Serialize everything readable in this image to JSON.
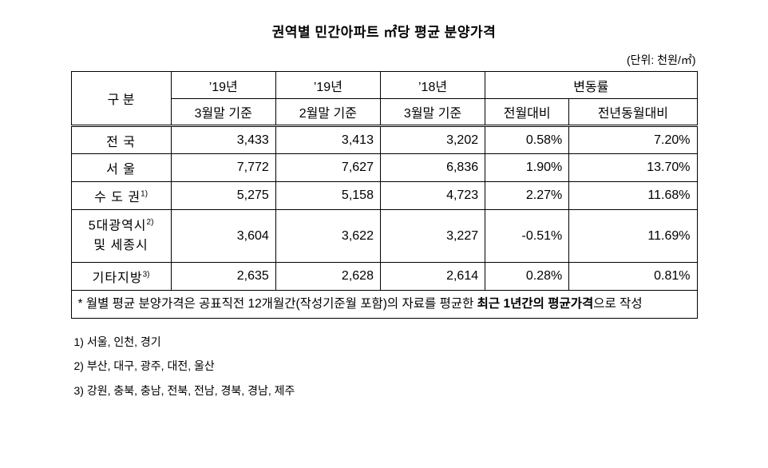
{
  "title": "권역별 민간아파트 ㎡당 평균 분양가격",
  "unit_note": "(단위: 천원/㎡)",
  "table": {
    "header": {
      "gubun": "구 분",
      "col1_line1": "’19년",
      "col1_line2": "3월말 기준",
      "col2_line1": "’19년",
      "col2_line2": "2월말 기준",
      "col3_line1": "’18년",
      "col3_line2": "3월말 기준",
      "change": "변동률",
      "mom": "전월대비",
      "yoy": "전년동월대비"
    },
    "rows": [
      {
        "label": "전 국",
        "values": [
          "3,433",
          "3,413",
          "3,202",
          "0.58%",
          "7.20%"
        ]
      },
      {
        "label": "서 울",
        "values": [
          "7,772",
          "7,627",
          "6,836",
          "1.90%",
          "13.70%"
        ]
      },
      {
        "label": "수 도 권",
        "sup": "1)",
        "values": [
          "5,275",
          "5,158",
          "4,723",
          "2.27%",
          "11.68%"
        ]
      },
      {
        "label": "5대광역시",
        "sup": "2)",
        "label2": "및 세종시",
        "values": [
          "3,604",
          "3,622",
          "3,227",
          "-0.51%",
          "11.69%"
        ]
      },
      {
        "label": "기타지방",
        "sup": "3)",
        "values": [
          "2,635",
          "2,628",
          "2,614",
          "0.28%",
          "0.81%"
        ]
      }
    ],
    "note": {
      "prefix": "* 월별 평균 분양가격은 공표직전 12개월간(작성기준월 포함)의 자료를 평균한 ",
      "bold": "최근 1년간의 평균가격",
      "suffix": "으로 작성"
    }
  },
  "footnotes": [
    "1) 서울, 인천, 경기",
    "2) 부산, 대구, 광주, 대전, 울산",
    "3) 강원, 충북, 충남, 전북, 전남, 경북, 경남, 제주"
  ]
}
